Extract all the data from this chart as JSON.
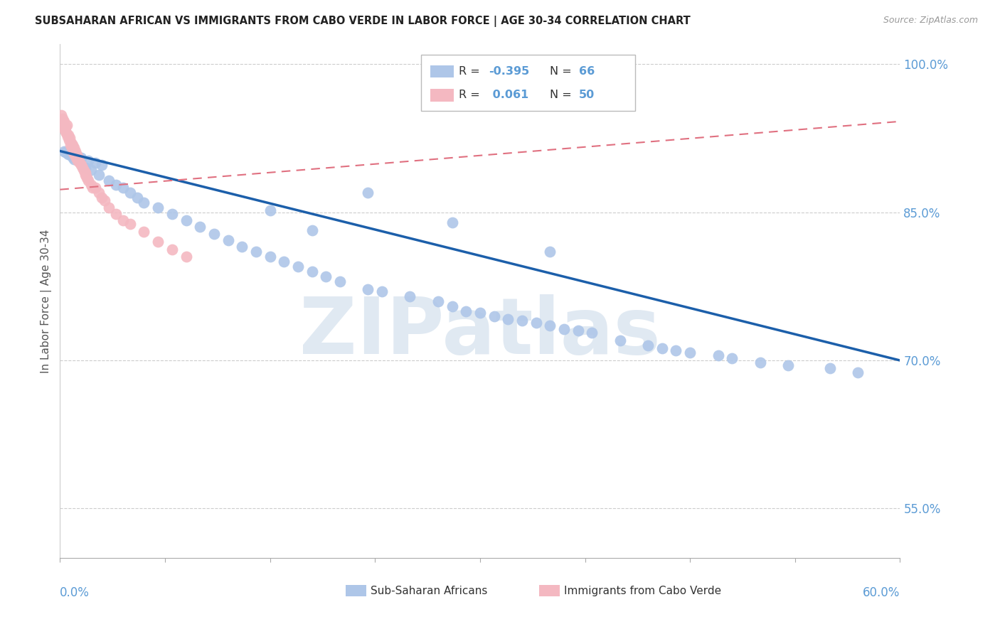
{
  "title": "SUBSAHARAN AFRICAN VS IMMIGRANTS FROM CABO VERDE IN LABOR FORCE | AGE 30-34 CORRELATION CHART",
  "source": "Source: ZipAtlas.com",
  "ylabel": "In Labor Force | Age 30-34",
  "R1": "-0.395",
  "N1": "66",
  "R2": "0.061",
  "N2": "50",
  "watermark": "ZIPatlas",
  "background_color": "#ffffff",
  "scatter_blue_color": "#aec6e8",
  "scatter_pink_color": "#f4b8c1",
  "trend_blue_color": "#1c5faa",
  "trend_pink_color": "#e07080",
  "grid_color": "#cccccc",
  "legend1_color": "#aec6e8",
  "legend2_color": "#f4b8c1",
  "blue_trend_y_start": 0.912,
  "blue_trend_y_end": 0.7,
  "pink_trend_y_start": 0.873,
  "pink_trend_y_end": 0.942,
  "xlim": [
    0,
    60
  ],
  "ylim": [
    0.5,
    1.02
  ],
  "yticks": [
    0.55,
    0.7,
    0.85,
    1.0
  ],
  "ytick_labels": [
    "55.0%",
    "70.0%",
    "85.0%",
    "100.0%"
  ],
  "blue_scatter_x": [
    1.2,
    0.5,
    0.8,
    1.5,
    2.0,
    2.5,
    3.0,
    0.3,
    0.4,
    0.6,
    0.9,
    1.0,
    1.8,
    2.2,
    2.8,
    3.5,
    4.0,
    4.5,
    5.0,
    5.5,
    6.0,
    7.0,
    8.0,
    9.0,
    10.0,
    11.0,
    12.0,
    13.0,
    14.0,
    15.0,
    16.0,
    17.0,
    18.0,
    19.0,
    20.0,
    22.0,
    23.0,
    25.0,
    27.0,
    28.0,
    29.0,
    30.0,
    31.0,
    32.0,
    33.0,
    34.0,
    35.0,
    36.0,
    37.0,
    38.0,
    40.0,
    42.0,
    43.0,
    44.0,
    45.0,
    47.0,
    48.0,
    50.0,
    52.0,
    55.0,
    57.0,
    35.0,
    28.0,
    22.0,
    18.0,
    15.0
  ],
  "blue_scatter_y": [
    0.907,
    0.91,
    0.908,
    0.905,
    0.902,
    0.9,
    0.898,
    0.912,
    0.911,
    0.909,
    0.906,
    0.904,
    0.895,
    0.893,
    0.888,
    0.882,
    0.878,
    0.875,
    0.87,
    0.865,
    0.86,
    0.855,
    0.848,
    0.842,
    0.835,
    0.828,
    0.822,
    0.815,
    0.81,
    0.805,
    0.8,
    0.795,
    0.79,
    0.785,
    0.78,
    0.772,
    0.77,
    0.765,
    0.76,
    0.755,
    0.75,
    0.748,
    0.745,
    0.742,
    0.74,
    0.738,
    0.735,
    0.732,
    0.73,
    0.728,
    0.72,
    0.715,
    0.712,
    0.71,
    0.708,
    0.705,
    0.702,
    0.698,
    0.695,
    0.692,
    0.688,
    0.81,
    0.84,
    0.87,
    0.832,
    0.852
  ],
  "pink_scatter_x": [
    0.2,
    0.3,
    0.4,
    0.5,
    0.6,
    0.7,
    0.8,
    0.9,
    1.0,
    1.1,
    1.2,
    1.3,
    1.4,
    1.5,
    1.6,
    1.7,
    1.8,
    1.9,
    2.0,
    2.2,
    2.5,
    2.8,
    3.0,
    3.2,
    3.5,
    4.0,
    4.5,
    5.0,
    0.15,
    0.25,
    0.35,
    0.45,
    0.55,
    0.65,
    0.75,
    0.85,
    0.95,
    1.05,
    1.15,
    1.25,
    0.1,
    0.2,
    0.3,
    0.4,
    6.0,
    7.0,
    8.0,
    9.0,
    2.3,
    1.8
  ],
  "pink_scatter_y": [
    0.94,
    0.935,
    0.932,
    0.938,
    0.928,
    0.925,
    0.92,
    0.918,
    0.915,
    0.912,
    0.908,
    0.905,
    0.9,
    0.898,
    0.895,
    0.892,
    0.888,
    0.885,
    0.882,
    0.878,
    0.875,
    0.87,
    0.865,
    0.862,
    0.855,
    0.848,
    0.842,
    0.838,
    0.942,
    0.938,
    0.935,
    0.93,
    0.927,
    0.923,
    0.918,
    0.915,
    0.91,
    0.908,
    0.905,
    0.902,
    0.948,
    0.945,
    0.942,
    0.937,
    0.83,
    0.82,
    0.812,
    0.805,
    0.875,
    0.89
  ]
}
